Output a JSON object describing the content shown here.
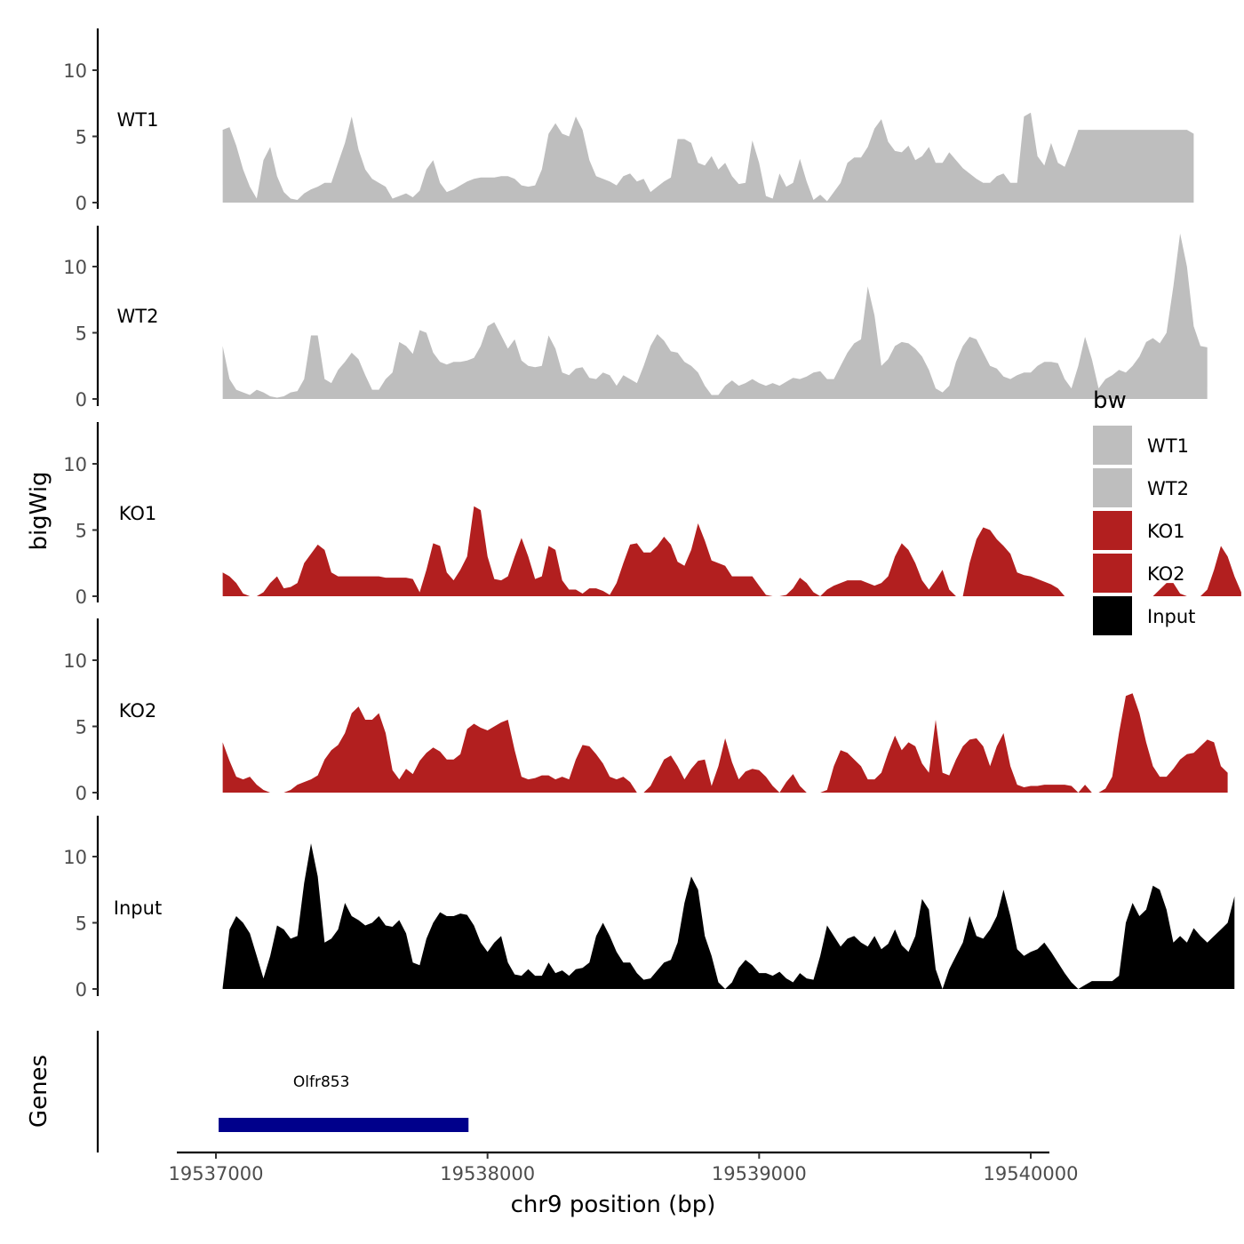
{
  "chart_data": {
    "type": "area",
    "ylabel": "bigWig",
    "xlabel": "chr9 position (bp)",
    "xlim": [
      19537000,
      19540000
    ],
    "x_ticks": [
      19537000,
      19538000,
      19539000,
      19540000
    ],
    "x_tick_labels": [
      "19537000",
      "19538000",
      "19539000",
      "19540000"
    ],
    "ylim": [
      0,
      13
    ],
    "y_ticks": [
      0,
      5,
      10
    ],
    "y_tick_labels": [
      "0",
      "5",
      "10"
    ],
    "x_step": 25,
    "x_start": 19537025,
    "tracks": [
      {
        "name": "WT1",
        "color": "#bebebe",
        "values": [
          5.5,
          5.7,
          4.3,
          2.5,
          1.2,
          0.3,
          3.2,
          4.2,
          2.0,
          0.8,
          0.3,
          0.2,
          0.7,
          1.0,
          1.2,
          1.5,
          1.5,
          3.0,
          4.5,
          6.5,
          4.0,
          2.5,
          1.8,
          1.5,
          1.2,
          0.3,
          0.5,
          0.7,
          0.4,
          0.9,
          2.5,
          3.2,
          1.5,
          0.8,
          1.0,
          1.3,
          1.6,
          1.8,
          1.9,
          1.9,
          1.9,
          2.0,
          2.0,
          1.8,
          1.3,
          1.2,
          1.3,
          2.5,
          5.2,
          6.0,
          5.2,
          5.0,
          6.5,
          5.5,
          3.2,
          2.0,
          1.8,
          1.6,
          1.3,
          2.0,
          2.2,
          1.6,
          1.8,
          0.8,
          1.2,
          1.6,
          1.9,
          4.8,
          4.8,
          4.5,
          3.0,
          2.8,
          3.5,
          2.5,
          3.0,
          2.0,
          1.4,
          1.5,
          4.7,
          3.0,
          0.5,
          0.3,
          2.2,
          1.2,
          1.5,
          3.3,
          1.6,
          0.2,
          0.6,
          0.1,
          0.8,
          1.5,
          3.0,
          3.4,
          3.4,
          4.2,
          5.6,
          6.3,
          4.6,
          3.9,
          3.8,
          4.3,
          3.2,
          3.5,
          4.2,
          3.0,
          3.0,
          3.8,
          3.2,
          2.6,
          2.2,
          1.8,
          1.5,
          1.5,
          2.0,
          2.2,
          1.5,
          1.5,
          6.5,
          6.8,
          3.5,
          2.8,
          4.5,
          3.0,
          2.7,
          4.0,
          5.5,
          5.5,
          5.5,
          5.5,
          5.5,
          5.5,
          5.5,
          5.5,
          5.5,
          5.5,
          5.5,
          5.5,
          5.5,
          5.5,
          5.5,
          5.5,
          5.5,
          5.2
        ]
      },
      {
        "name": "WT2",
        "color": "#bebebe",
        "values": [
          4.0,
          1.5,
          0.7,
          0.5,
          0.3,
          0.7,
          0.5,
          0.2,
          0.1,
          0.2,
          0.5,
          0.6,
          1.5,
          4.8,
          4.8,
          1.5,
          1.2,
          2.2,
          2.8,
          3.5,
          3.0,
          1.8,
          0.7,
          0.7,
          1.5,
          2.0,
          4.3,
          4.0,
          3.4,
          5.2,
          5.0,
          3.5,
          2.8,
          2.6,
          2.8,
          2.8,
          2.9,
          3.1,
          4.0,
          5.5,
          5.8,
          4.8,
          3.8,
          4.5,
          2.9,
          2.5,
          2.4,
          2.5,
          4.8,
          3.8,
          2.0,
          1.8,
          2.3,
          2.4,
          1.6,
          1.5,
          2.0,
          1.8,
          1.0,
          1.8,
          1.5,
          1.2,
          2.5,
          4.0,
          4.9,
          4.4,
          3.6,
          3.5,
          2.8,
          2.5,
          2.0,
          1.0,
          0.3,
          0.3,
          1.0,
          1.4,
          1.0,
          1.2,
          1.5,
          1.2,
          1.0,
          1.2,
          1.0,
          1.3,
          1.6,
          1.5,
          1.7,
          2.0,
          2.1,
          1.5,
          1.5,
          2.5,
          3.5,
          4.2,
          4.5,
          8.5,
          6.3,
          2.5,
          3.0,
          4.0,
          4.3,
          4.2,
          3.8,
          3.2,
          2.2,
          0.8,
          0.5,
          1.0,
          2.8,
          4.0,
          4.7,
          4.5,
          3.5,
          2.5,
          2.3,
          1.7,
          1.5,
          1.8,
          2.0,
          2.0,
          2.5,
          2.8,
          2.8,
          2.7,
          1.5,
          0.8,
          2.5,
          4.7,
          3.0,
          0.8,
          1.5,
          1.8,
          2.2,
          2.0,
          2.5,
          3.2,
          4.3,
          4.6,
          4.2,
          5.0,
          8.5,
          12.5,
          10.0,
          5.5,
          4.0,
          3.9
        ]
      },
      {
        "name": "KO1",
        "color": "#b21f1f",
        "values": [
          1.8,
          1.5,
          1.0,
          0.2,
          0.0,
          0.0,
          0.3,
          1.0,
          1.5,
          0.6,
          0.7,
          1.0,
          2.5,
          3.2,
          3.9,
          3.5,
          1.8,
          1.5,
          1.5,
          1.5,
          1.5,
          1.5,
          1.5,
          1.5,
          1.4,
          1.4,
          1.4,
          1.4,
          1.3,
          0.3,
          2.0,
          4.0,
          3.8,
          1.8,
          1.2,
          2.0,
          3.0,
          6.8,
          6.5,
          3.0,
          1.3,
          1.2,
          1.5,
          3.0,
          4.4,
          3.0,
          1.3,
          1.5,
          3.8,
          3.5,
          1.2,
          0.5,
          0.5,
          0.2,
          0.6,
          0.6,
          0.4,
          0.1,
          1.0,
          2.5,
          3.9,
          4.0,
          3.3,
          3.3,
          3.8,
          4.5,
          3.9,
          2.6,
          2.3,
          3.5,
          5.5,
          4.2,
          2.7,
          2.5,
          2.3,
          1.5,
          1.5,
          1.5,
          1.5,
          0.8,
          0.1,
          0.0,
          0.0,
          0.1,
          0.6,
          1.4,
          1.0,
          0.3,
          0.0,
          0.5,
          0.8,
          1.0,
          1.2,
          1.2,
          1.2,
          1.0,
          0.8,
          1.0,
          1.5,
          3.0,
          4.0,
          3.5,
          2.5,
          1.2,
          0.5,
          1.2,
          2.0,
          0.5,
          0.0,
          0.0,
          2.5,
          4.3,
          5.2,
          5.0,
          4.3,
          3.8,
          3.2,
          1.8,
          1.6,
          1.5,
          1.3,
          1.1,
          0.9,
          0.6,
          0.0,
          0.0,
          0.0,
          0.0,
          0.0,
          0.0,
          0.0,
          0.0,
          0.0,
          0.0,
          0.0,
          0.0,
          0.0,
          0.0,
          0.5,
          1.0,
          1.0,
          0.2,
          0.0,
          0.0,
          0.0,
          0.5,
          2.0,
          3.8,
          3.0,
          1.5,
          0.3
        ]
      },
      {
        "name": "KO2",
        "color": "#b21f1f",
        "values": [
          3.8,
          2.4,
          1.2,
          1.0,
          1.2,
          0.6,
          0.2,
          0.0,
          0.0,
          0.0,
          0.2,
          0.6,
          0.8,
          1.0,
          1.3,
          2.5,
          3.2,
          3.6,
          4.5,
          6.0,
          6.5,
          5.5,
          5.5,
          6.0,
          4.5,
          1.7,
          1.0,
          1.8,
          1.4,
          2.4,
          3.0,
          3.4,
          3.1,
          2.5,
          2.5,
          2.9,
          4.8,
          5.2,
          4.9,
          4.7,
          5.0,
          5.3,
          5.5,
          3.2,
          1.2,
          1.0,
          1.1,
          1.3,
          1.3,
          1.0,
          1.2,
          1.0,
          2.5,
          3.6,
          3.5,
          2.9,
          2.2,
          1.2,
          1.0,
          1.2,
          0.8,
          0.0,
          0.0,
          0.5,
          1.5,
          2.5,
          2.8,
          2.0,
          1.0,
          1.8,
          2.4,
          2.5,
          0.5,
          2.0,
          4.1,
          2.3,
          1.0,
          1.6,
          1.8,
          1.7,
          1.2,
          0.5,
          0.0,
          0.8,
          1.4,
          0.5,
          0.0,
          0.0,
          0.0,
          0.2,
          2.0,
          3.2,
          3.0,
          2.5,
          2.0,
          1.0,
          1.0,
          1.5,
          3.0,
          4.3,
          3.2,
          3.8,
          3.5,
          2.2,
          1.5,
          5.5,
          1.5,
          1.3,
          2.5,
          3.5,
          4.0,
          4.1,
          3.5,
          2.0,
          3.5,
          4.5,
          2.0,
          0.6,
          0.4,
          0.5,
          0.5,
          0.6,
          0.6,
          0.6,
          0.6,
          0.5,
          0.0,
          0.6,
          0.0,
          0.0,
          0.3,
          1.2,
          4.5,
          7.3,
          7.5,
          6.0,
          3.8,
          2.0,
          1.2,
          1.2,
          1.8,
          2.5,
          2.9,
          3.0,
          3.5,
          4.0,
          3.8,
          2.0,
          1.5
        ]
      },
      {
        "name": "Input",
        "color": "#000000",
        "values": [
          0.1,
          4.5,
          5.5,
          5.0,
          4.2,
          2.5,
          0.8,
          2.5,
          4.8,
          4.5,
          3.8,
          4.0,
          8.0,
          11.0,
          8.5,
          3.5,
          3.8,
          4.5,
          6.5,
          5.5,
          5.2,
          4.8,
          5.0,
          5.5,
          4.8,
          4.7,
          5.2,
          4.2,
          2.0,
          1.8,
          3.8,
          5.0,
          5.8,
          5.5,
          5.5,
          5.7,
          5.6,
          4.8,
          3.5,
          2.8,
          3.5,
          4.0,
          2.0,
          1.1,
          1.0,
          1.5,
          1.0,
          1.0,
          2.0,
          1.2,
          1.4,
          1.0,
          1.5,
          1.6,
          2.0,
          4.0,
          5.0,
          4.0,
          2.8,
          2.0,
          2.0,
          1.2,
          0.7,
          0.8,
          1.4,
          2.0,
          2.2,
          3.5,
          6.5,
          8.5,
          7.5,
          4.0,
          2.5,
          0.5,
          0.0,
          0.5,
          1.6,
          2.2,
          1.8,
          1.2,
          1.2,
          1.0,
          1.3,
          0.8,
          0.5,
          1.2,
          0.8,
          0.7,
          2.5,
          4.8,
          4.0,
          3.2,
          3.8,
          4.0,
          3.5,
          3.2,
          4.0,
          3.0,
          3.4,
          4.5,
          3.3,
          2.8,
          4.0,
          6.8,
          6.0,
          1.5,
          0.0,
          1.5,
          2.5,
          3.5,
          5.5,
          4.0,
          3.8,
          4.5,
          5.5,
          7.5,
          5.5,
          3.0,
          2.5,
          2.8,
          3.0,
          3.5,
          2.8,
          2.0,
          1.2,
          0.5,
          0.0,
          0.3,
          0.6,
          0.6,
          0.6,
          0.6,
          1.0,
          5.0,
          6.5,
          5.5,
          6.0,
          7.8,
          7.5,
          6.0,
          3.5,
          4.0,
          3.5,
          4.6,
          4.0,
          3.5,
          4.0,
          4.5,
          5.0,
          7.0
        ]
      }
    ],
    "legend": {
      "title": "bw",
      "position": "right",
      "entries": [
        {
          "label": "WT1",
          "color": "#bebebe"
        },
        {
          "label": "WT2",
          "color": "#bebebe"
        },
        {
          "label": "KO1",
          "color": "#b21f1f"
        },
        {
          "label": "KO2",
          "color": "#b21f1f"
        },
        {
          "label": "Input",
          "color": "#000000"
        }
      ]
    },
    "genes_panel": {
      "ylabel": "Genes",
      "genes": [
        {
          "name": "Olfr853",
          "start": 19537010,
          "end": 19537930,
          "color": "#00008b"
        }
      ]
    }
  }
}
